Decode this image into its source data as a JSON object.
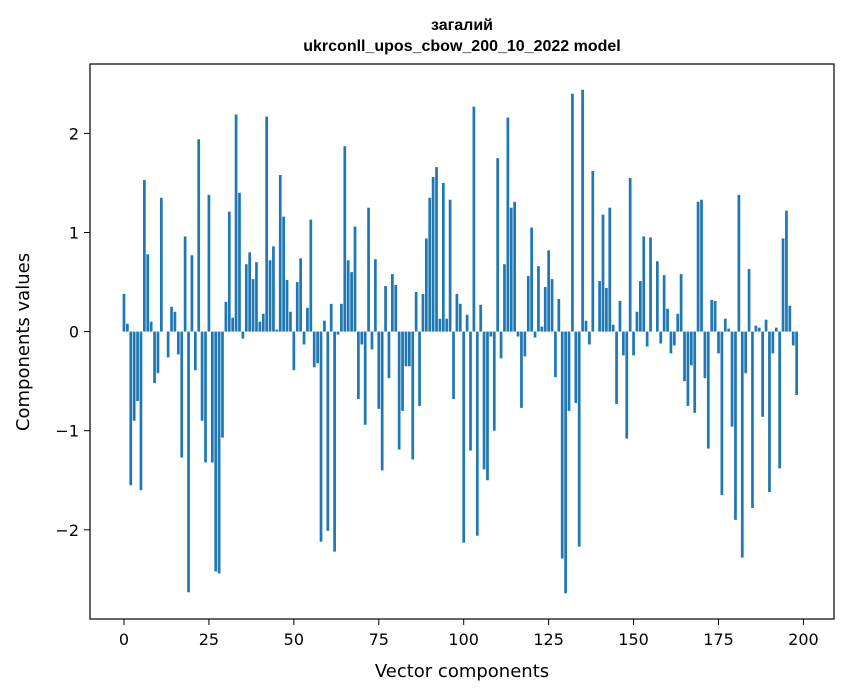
{
  "chart_data": {
    "type": "bar",
    "title": "загалий",
    "subtitle": "ukrconll_upos_cbow_200_10_2022 model",
    "xlabel": "Vector components",
    "ylabel": "Components values",
    "xlim": [
      -10,
      209
    ],
    "ylim": [
      -2.9,
      2.7
    ],
    "xticks": [
      0,
      25,
      50,
      75,
      100,
      125,
      150,
      175,
      200
    ],
    "yticks": [
      -2,
      -1,
      0,
      1,
      2
    ],
    "xtick_labels": [
      "0",
      "25",
      "50",
      "75",
      "100",
      "125",
      "150",
      "175",
      "200"
    ],
    "ytick_labels": [
      "−2",
      "−1",
      "0",
      "1",
      "2"
    ],
    "bar_color": "#1f77b4",
    "grid": false,
    "values": [
      0.38,
      0.08,
      -1.55,
      -0.9,
      -0.7,
      -1.6,
      1.53,
      0.78,
      0.1,
      -0.52,
      -0.42,
      1.35,
      0.0,
      -0.26,
      0.25,
      0.2,
      -0.23,
      -1.27,
      0.96,
      -2.63,
      0.77,
      -0.39,
      1.94,
      -0.9,
      -1.32,
      1.38,
      -1.32,
      -2.42,
      -2.44,
      -1.07,
      0.3,
      1.21,
      0.14,
      2.19,
      1.4,
      -0.07,
      0.68,
      0.8,
      0.53,
      0.7,
      0.1,
      0.18,
      2.17,
      0.72,
      0.86,
      0.02,
      1.58,
      1.16,
      0.52,
      0.2,
      -0.39,
      0.5,
      0.74,
      -0.13,
      0.24,
      1.13,
      -0.36,
      -0.32,
      -2.12,
      0.11,
      -2.01,
      0.28,
      -2.22,
      -0.03,
      0.28,
      1.87,
      0.72,
      0.6,
      1.06,
      -0.68,
      -0.13,
      -0.94,
      1.25,
      -0.18,
      0.73,
      -0.78,
      -1.4,
      0.46,
      -0.47,
      0.58,
      0.47,
      -1.19,
      -0.8,
      -0.35,
      -0.35,
      -1.29,
      0.4,
      -0.75,
      0.38,
      0.94,
      1.35,
      1.56,
      1.66,
      0.13,
      1.5,
      0.13,
      1.33,
      -0.68,
      0.38,
      0.28,
      -2.13,
      0.17,
      -1.2,
      2.27,
      -2.06,
      0.27,
      -1.39,
      -1.5,
      -0.05,
      -1.0,
      1.75,
      -0.27,
      0.68,
      2.16,
      1.25,
      1.31,
      -0.05,
      -0.77,
      -0.25,
      0.56,
      1.05,
      -0.06,
      0.66,
      0.05,
      0.45,
      0.82,
      0.53,
      -0.46,
      0.33,
      -2.29,
      -2.64,
      -0.8,
      2.4,
      -0.72,
      -2.17,
      2.44,
      0.11,
      -0.13,
      1.62,
      0.0,
      0.51,
      1.18,
      0.44,
      1.25,
      0.07,
      -0.73,
      0.31,
      -0.24,
      -1.08,
      1.55,
      -0.24,
      0.2,
      0.51,
      0.96,
      -0.15,
      0.95,
      0.0,
      0.71,
      -0.12,
      0.57,
      0.23,
      -0.22,
      -0.14,
      0.18,
      0.58,
      -0.5,
      -0.75,
      -0.34,
      -0.82,
      1.31,
      1.33,
      -0.47,
      -1.18,
      0.32,
      0.31,
      -0.22,
      -1.65,
      0.13,
      0.03,
      -0.96,
      -1.9,
      1.38,
      -2.28,
      -0.42,
      0.63,
      -1.78,
      0.06,
      0.04,
      -0.86,
      0.12,
      -1.62,
      -0.22,
      0.04,
      -1.38,
      0.94,
      1.22,
      0.26,
      -0.14,
      -0.64,
      0.0
    ]
  }
}
